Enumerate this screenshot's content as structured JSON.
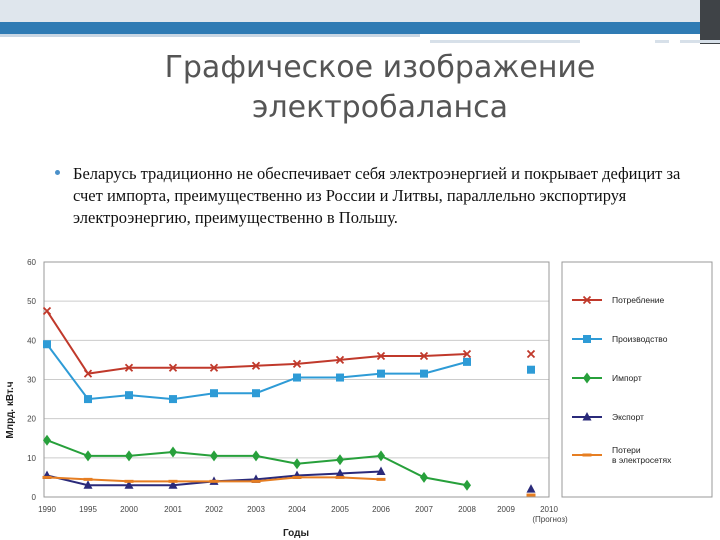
{
  "slide": {
    "title_line1": "Графическое изображение",
    "title_line2": "электробаланса",
    "bullet": "Беларусь традиционно не обеспечивает себя электроэнергией и покрывает дефицит за счет импорта, преимущественно из России и Литвы, параллельно экспортируя электроэнергию, преимущественно в Польшу.",
    "accent_color": "#2f7bb4"
  },
  "chart_data": {
    "type": "line",
    "title": "",
    "xlabel": "Годы",
    "ylabel": "Млрд. кВт.ч",
    "ylim": [
      0,
      60
    ],
    "yticks": [
      0,
      10,
      20,
      30,
      40,
      50,
      60
    ],
    "xlim": [
      1990,
      2010
    ],
    "xticks": [
      "1990",
      "1995",
      "2000",
      "2001",
      "2002",
      "2003",
      "2004",
      "2005",
      "2006",
      "2007",
      "2008",
      "2009",
      "2010"
    ],
    "xtick_note": "(Прогноз)",
    "grid": true,
    "legend_position": "right",
    "series": [
      {
        "name": "Потребление",
        "color": "#c0392b",
        "marker": "x",
        "x": [
          1990,
          1995,
          2000,
          2001,
          2002,
          2003,
          2004,
          2005,
          2006,
          2007,
          2008
        ],
        "values": [
          47.5,
          31.5,
          33,
          33,
          33,
          33.5,
          34,
          35,
          36,
          36,
          36.5
        ],
        "forecast": {
          "x": 2010,
          "value": 36.5
        }
      },
      {
        "name": "Производство",
        "color": "#2e9bd6",
        "marker": "square",
        "x": [
          1990,
          1995,
          2000,
          2001,
          2002,
          2003,
          2004,
          2005,
          2006,
          2007,
          2008
        ],
        "values": [
          39,
          25,
          26,
          25,
          26.5,
          26.5,
          30.5,
          30.5,
          31.5,
          31.5,
          34.5
        ],
        "forecast": {
          "x": 2010,
          "value": 32.5
        }
      },
      {
        "name": "Импорт",
        "color": "#27a03b",
        "marker": "diamond",
        "x": [
          1990,
          1995,
          2000,
          2001,
          2002,
          2003,
          2004,
          2005,
          2006,
          2007,
          2008
        ],
        "values": [
          14.5,
          10.5,
          10.5,
          11.5,
          10.5,
          10.5,
          8.5,
          9.5,
          10.5,
          5,
          3
        ],
        "forecast": null
      },
      {
        "name": "Экспорт",
        "color": "#2a2a7a",
        "marker": "triangle",
        "x": [
          1990,
          1995,
          2000,
          2001,
          2002,
          2003,
          2004,
          2005,
          2006
        ],
        "values": [
          5.5,
          3,
          3,
          3,
          4,
          4.5,
          5.5,
          6,
          6.5
        ],
        "forecast": {
          "x": 2010,
          "value": 2
        }
      },
      {
        "name": "Потери\nв электросетях",
        "color": "#e67e22",
        "marker": "dash",
        "x": [
          1990,
          1995,
          2000,
          2001,
          2002,
          2003,
          2004,
          2005,
          2006
        ],
        "values": [
          5,
          4.5,
          4,
          4,
          4,
          4,
          5,
          5,
          4.5
        ],
        "forecast": {
          "x": 2010,
          "value": 0.5
        }
      }
    ]
  }
}
